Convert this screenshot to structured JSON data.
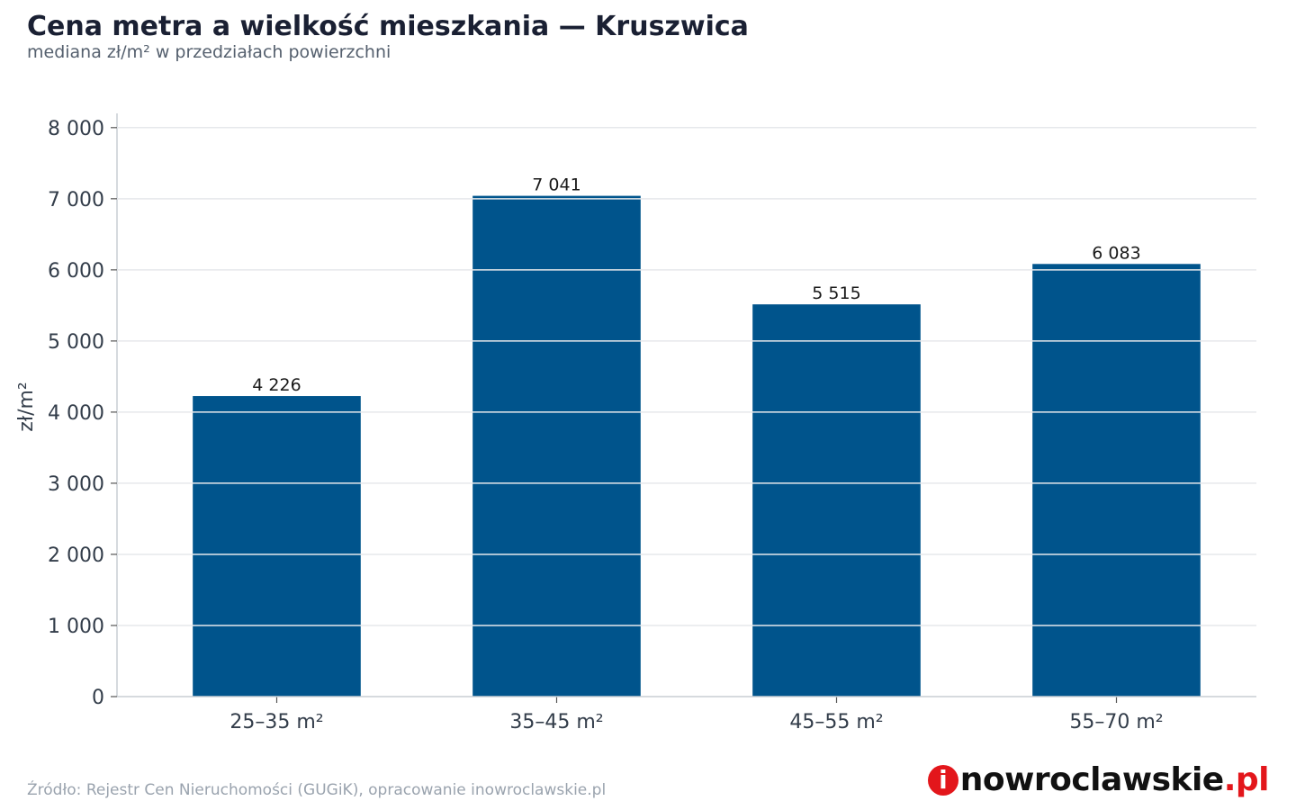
{
  "title": "Cena metra a wielkość mieszkania — Kruszwica",
  "subtitle": "mediana zł/m² w przedziałach powierzchni",
  "source": "Źródło: Rejestr Cen Nieruchomości (GUGiK), opracowanie inowroclawskie.pl",
  "logo": {
    "letter": "i",
    "name": "nowroclawskie",
    "tld": ".pl"
  },
  "colors": {
    "bar": "#00548c",
    "grid": "#e6e8eb",
    "axis": "#c9ced4",
    "text": "#333d4a"
  },
  "chart_data": {
    "type": "bar",
    "categories": [
      "25–35 m²",
      "35–45 m²",
      "45–55 m²",
      "55–70 m²"
    ],
    "values": [
      4226,
      7041,
      5515,
      6083
    ],
    "value_labels": [
      "4 226",
      "7 041",
      "5 515",
      "6 083"
    ],
    "ylabel": "zł/m²",
    "ylim": [
      0,
      8000
    ],
    "yticks": [
      0,
      1000,
      2000,
      3000,
      4000,
      5000,
      6000,
      7000,
      8000
    ],
    "ytick_labels": [
      "0",
      "1 000",
      "2 000",
      "3 000",
      "4 000",
      "5 000",
      "6 000",
      "7 000",
      "8 000"
    ],
    "grid": true
  }
}
